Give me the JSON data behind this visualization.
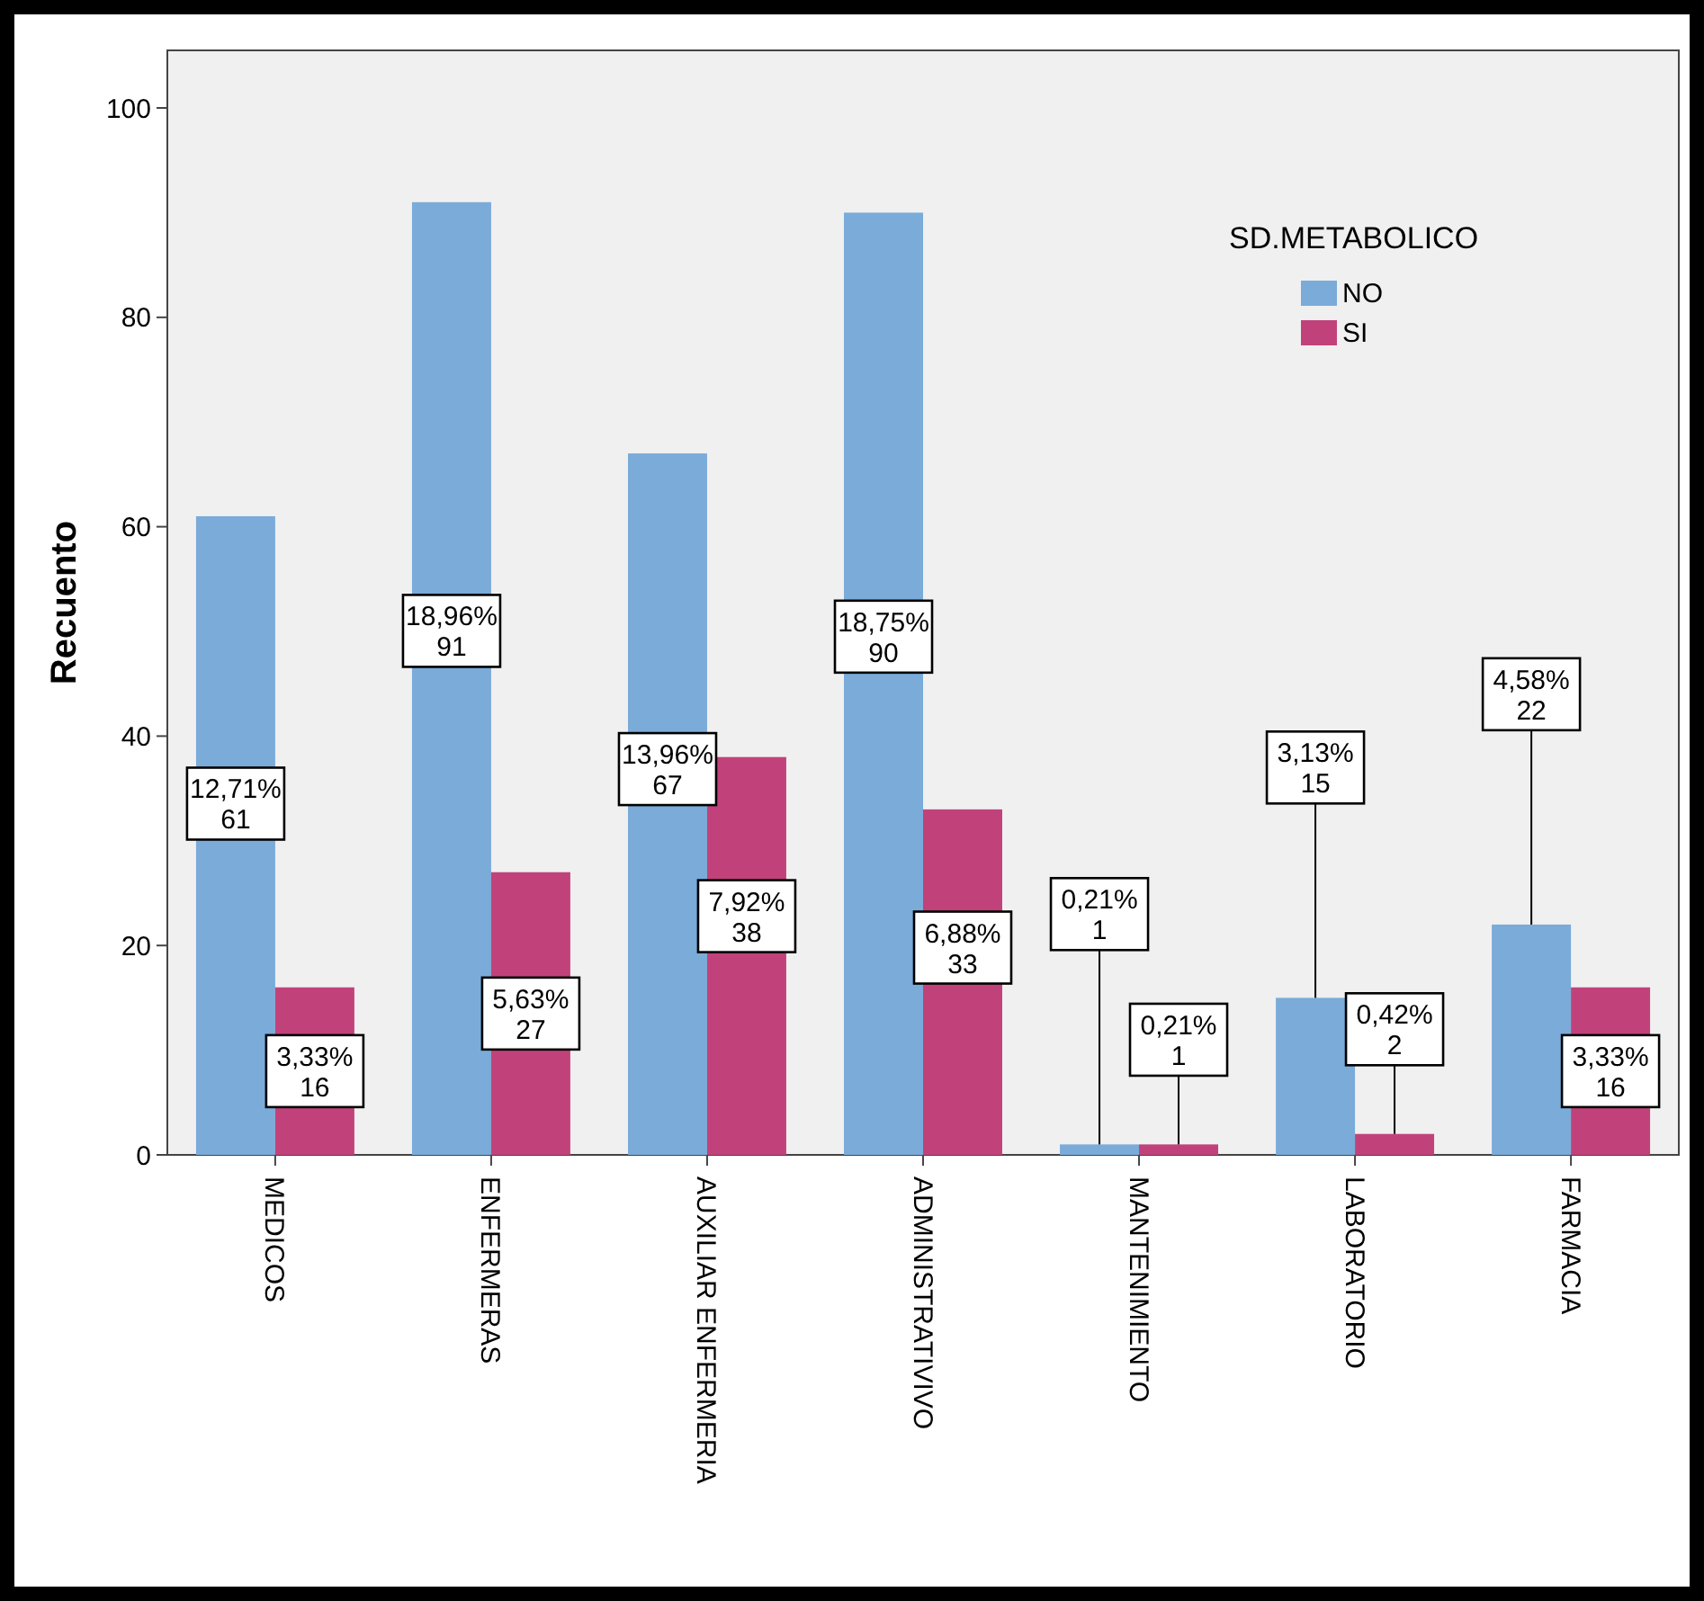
{
  "chart_data": {
    "type": "bar",
    "ylabel": "Recuento",
    "legend_title": "SD.METABOLICO",
    "legend": "top right",
    "categories": [
      "MEDICOS",
      "ENFERMERAS",
      "AUXILIAR ENFERMERIA",
      "ADMINISTRATIVIVO",
      "MANTENIMIENTO",
      "LABORATORIO",
      "FARMACIA"
    ],
    "series": [
      {
        "name": "NO",
        "color": "#7aabd9",
        "values": [
          61,
          91,
          67,
          90,
          1,
          15,
          22
        ],
        "value_labels": [
          "12,71%\n61",
          "18,96%\n91",
          "13,96%\n67",
          "18,75%\n90",
          "0,21%\n1",
          "3,13%\n15",
          "4,58%\n22"
        ]
      },
      {
        "name": "SI",
        "color": "#c1427a",
        "values": [
          16,
          27,
          38,
          33,
          1,
          2,
          16
        ],
        "value_labels": [
          "3,33%\n16",
          "5,63%\n27",
          "7,92%\n38",
          "6,88%\n33",
          "0,21%\n1",
          "0,42%\n2",
          "3,33%\n16"
        ]
      }
    ],
    "ylim": [
      0,
      105.5
    ],
    "yticks": [
      0,
      20,
      40,
      60,
      80,
      100
    ],
    "grid": false
  }
}
